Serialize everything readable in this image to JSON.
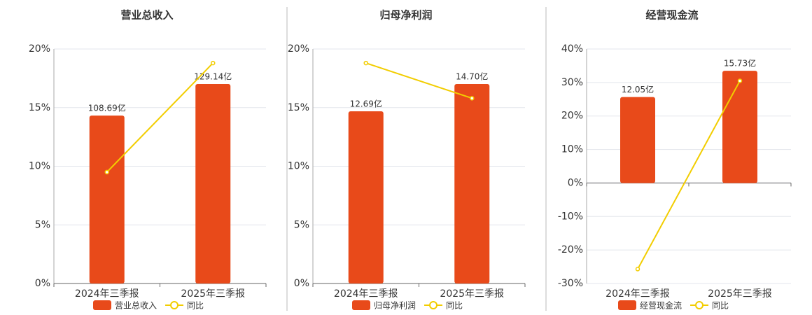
{
  "chart_data": [
    {
      "type": "bar",
      "title": "营业总收入",
      "categories": [
        "2024年三季报",
        "2025年三季报"
      ],
      "ylim": [
        0,
        20
      ],
      "yticks": [
        {
          "value": 0,
          "label": "0%"
        },
        {
          "value": 5,
          "label": "5%"
        },
        {
          "value": 10,
          "label": "10%"
        },
        {
          "value": 15,
          "label": "15%"
        },
        {
          "value": 20,
          "label": "20%"
        }
      ],
      "y2lim": [
        0,
        151.8
      ],
      "grid": true,
      "series": [
        {
          "name": "营业总收入",
          "type": "bar",
          "axis": "y2",
          "color": "#e84a1a",
          "values": [
            108.69,
            129.14
          ],
          "value_labels": [
            "108.69亿",
            "129.14亿"
          ]
        },
        {
          "name": "同比",
          "type": "line",
          "color": "#f2cd00",
          "values": [
            9.5,
            18.8
          ]
        }
      ]
    },
    {
      "type": "bar",
      "title": "归母净利润",
      "categories": [
        "2024年三季报",
        "2025年三季报"
      ],
      "ylim": [
        0,
        20
      ],
      "yticks": [
        {
          "value": 0,
          "label": "0%"
        },
        {
          "value": 5,
          "label": "5%"
        },
        {
          "value": 10,
          "label": "10%"
        },
        {
          "value": 15,
          "label": "15%"
        },
        {
          "value": 20,
          "label": "20%"
        }
      ],
      "y2lim": [
        0,
        17.28
      ],
      "grid": true,
      "series": [
        {
          "name": "归母净利润",
          "type": "bar",
          "axis": "y2",
          "color": "#e84a1a",
          "values": [
            12.69,
            14.7
          ],
          "value_labels": [
            "12.69亿",
            "14.70亿"
          ]
        },
        {
          "name": "同比",
          "type": "line",
          "color": "#f2cd00",
          "values": [
            18.8,
            15.8
          ]
        }
      ]
    },
    {
      "type": "bar",
      "title": "经营现金流",
      "categories": [
        "2024年三季报",
        "2025年三季报"
      ],
      "ylim": [
        -30,
        40
      ],
      "yticks": [
        {
          "value": -30,
          "label": "-30%"
        },
        {
          "value": -20,
          "label": "-20%"
        },
        {
          "value": -10,
          "label": "-10%"
        },
        {
          "value": 0,
          "label": "0%"
        },
        {
          "value": 10,
          "label": "10%"
        },
        {
          "value": 20,
          "label": "20%"
        },
        {
          "value": 30,
          "label": "30%"
        },
        {
          "value": 40,
          "label": "40%"
        }
      ],
      "y2lim": [
        -14.08,
        18.78
      ],
      "grid": true,
      "series": [
        {
          "name": "经营现金流",
          "type": "bar",
          "axis": "y2",
          "color": "#e84a1a",
          "values": [
            12.05,
            15.73
          ],
          "value_labels": [
            "12.05亿",
            "15.73亿"
          ]
        },
        {
          "name": "同比",
          "type": "line",
          "color": "#f2cd00",
          "values": [
            -25.7,
            30.5
          ]
        }
      ]
    }
  ]
}
